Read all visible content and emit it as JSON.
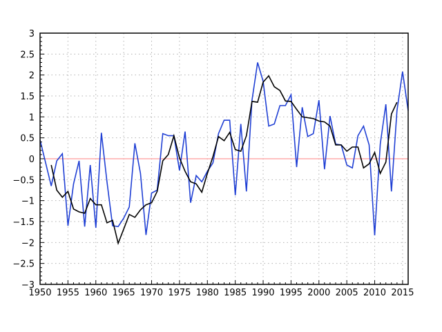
{
  "chart_data": {
    "type": "line",
    "title": "",
    "xlabel": "",
    "ylabel": "",
    "xlim": [
      1950,
      2016
    ],
    "ylim": [
      -3,
      3
    ],
    "x_ticks": [
      1950,
      1955,
      1960,
      1965,
      1970,
      1975,
      1980,
      1985,
      1990,
      1995,
      2000,
      2005,
      2010,
      2015
    ],
    "y_ticks": [
      -3,
      -2.5,
      -2,
      -1.5,
      -1,
      -0.5,
      0,
      0.5,
      1,
      1.5,
      2,
      2.5,
      3
    ],
    "grid": true,
    "reference_line": {
      "y": 0,
      "color": "#ff8080"
    },
    "series": [
      {
        "color": "#1f3fd4",
        "x": [
          1950,
          1951,
          1952,
          1953,
          1954,
          1955,
          1956,
          1957,
          1958,
          1959,
          1960,
          1961,
          1962,
          1963,
          1964,
          1965,
          1966,
          1967,
          1968,
          1969,
          1970,
          1971,
          1972,
          1973,
          1974,
          1975,
          1976,
          1977,
          1978,
          1979,
          1980,
          1981,
          1982,
          1983,
          1984,
          1985,
          1986,
          1987,
          1988,
          1989,
          1990,
          1991,
          1992,
          1993,
          1994,
          1995,
          1996,
          1997,
          1998,
          1999,
          2000,
          2001,
          2002,
          2003,
          2004,
          2005,
          2006,
          2007,
          2008,
          2009,
          2010,
          2011,
          2012,
          2013,
          2014,
          2015,
          2016
        ],
        "values": [
          0.45,
          -0.1,
          -0.65,
          -0.05,
          0.12,
          -1.6,
          -0.6,
          -0.05,
          -1.62,
          -0.15,
          -1.65,
          0.62,
          -0.55,
          -1.6,
          -1.62,
          -1.42,
          -1.15,
          0.37,
          -0.35,
          -1.82,
          -0.82,
          -0.75,
          0.6,
          0.55,
          0.55,
          -0.28,
          0.65,
          -1.05,
          -0.4,
          -0.55,
          -0.3,
          -0.1,
          0.6,
          0.92,
          0.92,
          -0.87,
          0.83,
          -0.78,
          1.4,
          2.3,
          1.85,
          0.78,
          0.83,
          1.27,
          1.27,
          1.53,
          -0.2,
          1.23,
          0.53,
          0.6,
          1.4,
          -0.25,
          1.02,
          0.35,
          0.33,
          -0.15,
          -0.22,
          0.55,
          0.78,
          0.33,
          -1.83,
          0.35,
          1.3,
          -0.78,
          1.15,
          2.08,
          1.15
        ]
      },
      {
        "color": "#000000",
        "x": [
          1952,
          1953,
          1954,
          1955,
          1956,
          1957,
          1958,
          1959,
          1960,
          1961,
          1962,
          1963,
          1964,
          1965,
          1966,
          1967,
          1968,
          1969,
          1970,
          1971,
          1972,
          1973,
          1974,
          1975,
          1976,
          1977,
          1978,
          1979,
          1980,
          1981,
          1982,
          1983,
          1984,
          1985,
          1986,
          1987,
          1988,
          1989,
          1990,
          1991,
          1992,
          1993,
          1994,
          1995,
          1996,
          1997,
          1998,
          1999,
          2000,
          2001,
          2002,
          2003,
          2004,
          2005,
          2006,
          2007,
          2008,
          2009,
          2010,
          2011,
          2012,
          2013,
          2014
        ],
        "values": [
          -0.15,
          -0.75,
          -0.92,
          -0.78,
          -1.2,
          -1.27,
          -1.3,
          -0.95,
          -1.1,
          -1.1,
          -1.53,
          -1.47,
          -2.02,
          -1.68,
          -1.33,
          -1.4,
          -1.22,
          -1.1,
          -1.05,
          -0.78,
          -0.05,
          0.1,
          0.55,
          0.02,
          -0.3,
          -0.55,
          -0.6,
          -0.8,
          -0.35,
          0.05,
          0.53,
          0.43,
          0.63,
          0.22,
          0.18,
          0.55,
          1.37,
          1.35,
          1.83,
          1.98,
          1.72,
          1.63,
          1.38,
          1.37,
          1.18,
          1.0,
          0.98,
          0.96,
          0.9,
          0.88,
          0.78,
          0.33,
          0.33,
          0.18,
          0.28,
          0.28,
          -0.22,
          -0.12,
          0.15,
          -0.35,
          -0.08,
          1.07,
          1.35
        ]
      }
    ]
  }
}
